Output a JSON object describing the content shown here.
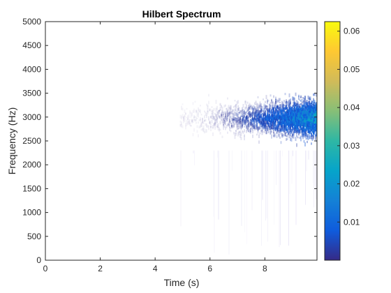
{
  "chart_data": {
    "type": "heatmap",
    "title": "Hilbert Spectrum",
    "xlabel": "Time (s)",
    "ylabel": "Frequency (Hz)",
    "xlim": [
      0,
      9.9
    ],
    "ylim": [
      0,
      5000
    ],
    "x_ticks": [
      0,
      2,
      4,
      6,
      8
    ],
    "x_tick_labels": [
      "0",
      "2",
      "4",
      "6",
      "8"
    ],
    "y_ticks": [
      0,
      500,
      1000,
      1500,
      2000,
      2500,
      3000,
      3500,
      4000,
      4500,
      5000
    ],
    "y_tick_labels": [
      "0",
      "500",
      "1000",
      "1500",
      "2000",
      "2500",
      "3000",
      "3500",
      "4000",
      "4500",
      "5000"
    ],
    "colorbar": {
      "limits": [
        0,
        0.0625
      ],
      "ticks": [
        0.01,
        0.02,
        0.03,
        0.04,
        0.05,
        0.06
      ],
      "tick_labels": [
        "0.01",
        "0.02",
        "0.03",
        "0.04",
        "0.05",
        "0.06"
      ],
      "colormap": "parula",
      "colors": [
        "#352a87",
        "#0f5cdd",
        "#1481d6",
        "#06a4ca",
        "#2eb7a4",
        "#87bf77",
        "#d1bb59",
        "#fec832",
        "#f9fb0e"
      ]
    },
    "grid": false,
    "energy_band": {
      "start_time": 4.9,
      "end_time": 9.9,
      "center_frequency": 3000,
      "min_frequency": 2300,
      "max_frequency": 3450,
      "sparse_tail_min_frequency": 0,
      "amplitude_peak": 0.025
    }
  }
}
